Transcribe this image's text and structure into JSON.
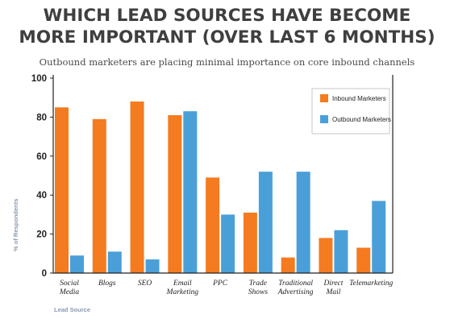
{
  "chart_data": {
    "type": "bar",
    "title": "WHICH LEAD SOURCES HAVE BECOME MORE IMPORTANT (OVER LAST 6 MONTHS)",
    "title_lines": [
      "WHICH LEAD SOURCES HAVE BECOME",
      "MORE IMPORTANT (OVER LAST 6 MONTHS)"
    ],
    "subtitle": "Outbound marketers are placing minimal importance on core inbound channels",
    "xlabel": "Lead Source",
    "ylabel": "% of Respondents",
    "ylim": [
      0,
      100
    ],
    "yticks": [
      0,
      20,
      40,
      60,
      80,
      100
    ],
    "categories": [
      [
        "Social",
        "Media"
      ],
      [
        "Blogs"
      ],
      [
        "SEO"
      ],
      [
        "Email",
        "Marketing"
      ],
      [
        "PPC"
      ],
      [
        "Trade",
        "Shows"
      ],
      [
        "Traditional",
        "Advertising"
      ],
      [
        "Direct",
        "Mail"
      ],
      [
        "Telemarketing"
      ]
    ],
    "series": [
      {
        "name": "Inbound Marketers",
        "color": "#f47b20",
        "values": [
          85,
          79,
          88,
          81,
          49,
          31,
          8,
          18,
          13
        ]
      },
      {
        "name": "Outbound Marketers",
        "color": "#4a9fd8",
        "values": [
          9,
          11,
          7,
          83,
          30,
          52,
          52,
          22,
          37
        ]
      }
    ],
    "grid": false,
    "legend_position": "top-right"
  }
}
